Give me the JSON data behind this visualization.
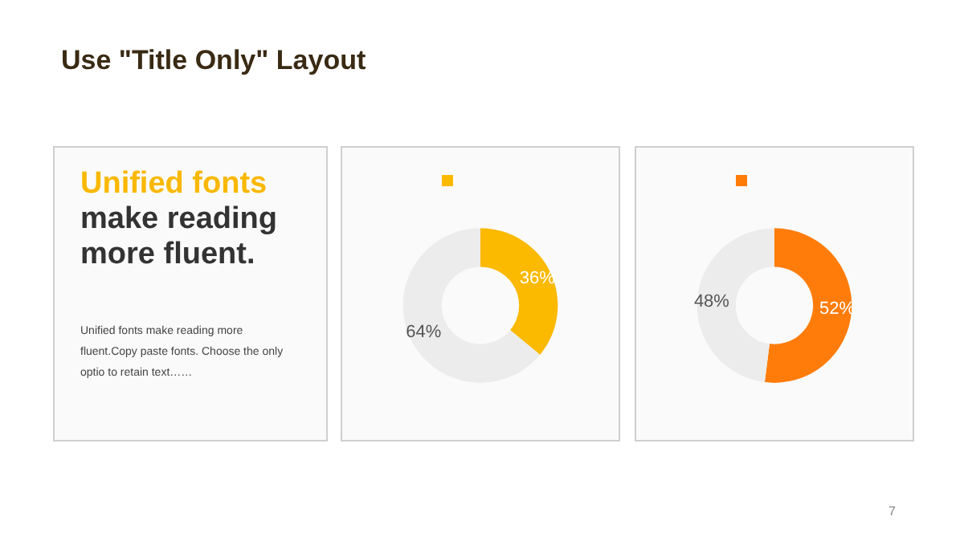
{
  "chart_data": [
    {
      "type": "other",
      "title": "Use \"Title Only\" Layout",
      "annotations": [
        "7"
      ]
    },
    {
      "type": "other",
      "title": "Unified fonts",
      "subtitle": "make reading more fluent.",
      "color": "#f9b800",
      "annotations": [
        "Unified fonts make reading more fluent.Copy paste fonts. Choose the only optio to retain text……"
      ]
    },
    {
      "type": "donut",
      "categories": [
        null,
        null
      ],
      "values": [
        36,
        64
      ],
      "value_labels": [
        "36%",
        "64%"
      ],
      "colors": [
        "#fbb900",
        "#ececec"
      ]
    },
    {
      "type": "donut",
      "categories": [
        null,
        null
      ],
      "values": [
        52,
        48
      ],
      "value_labels": [
        "52%",
        "48%"
      ],
      "colors": [
        "#ff7c0a",
        "#ececec"
      ]
    }
  ]
}
